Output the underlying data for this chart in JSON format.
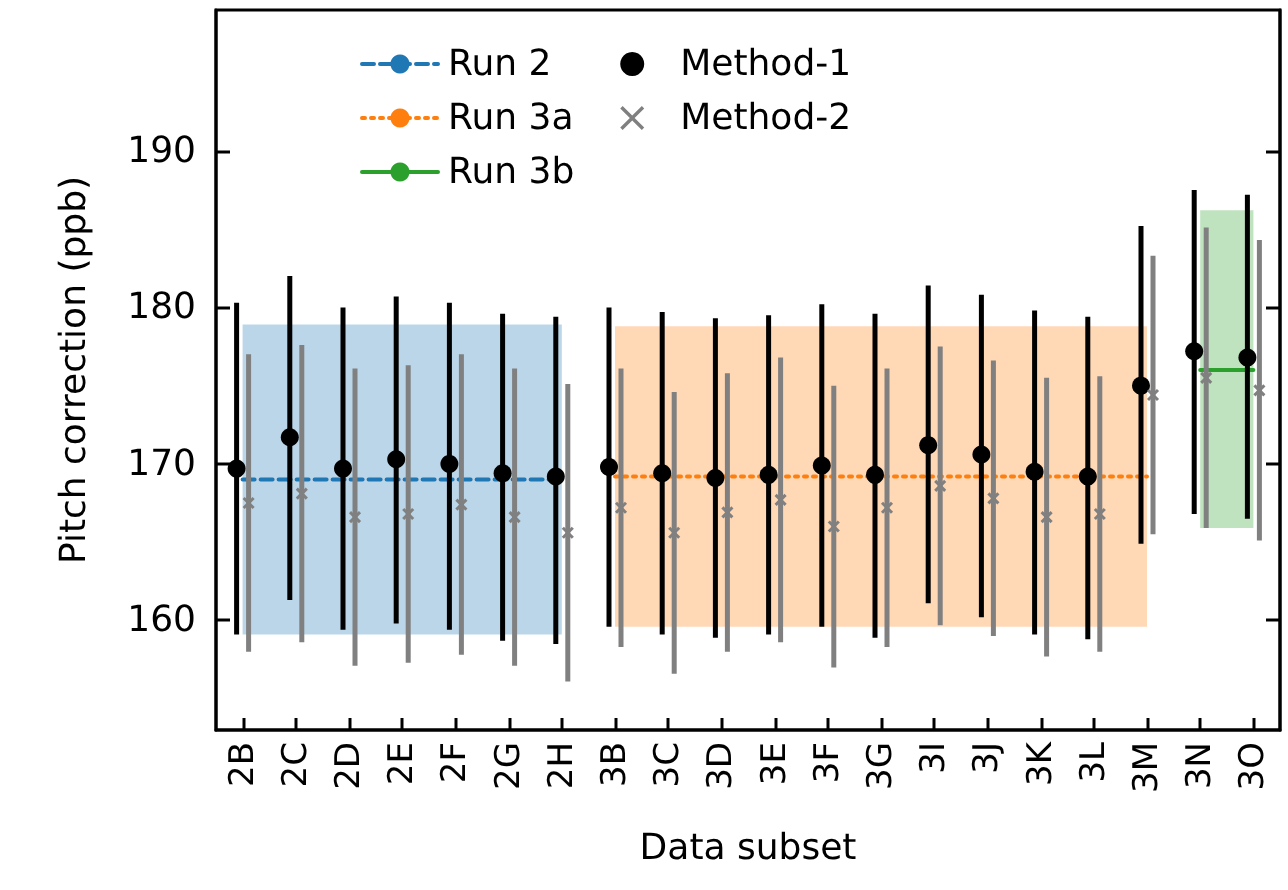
{
  "chart_data": {
    "type": "scatter",
    "xlabel": "Data subset",
    "ylabel": "Pitch correction (ppb)",
    "categories": [
      "2B",
      "2C",
      "2D",
      "2E",
      "2F",
      "2G",
      "2H",
      "3B",
      "3C",
      "3D",
      "3E",
      "3F",
      "3G",
      "3I",
      "3J",
      "3K",
      "3L",
      "3M",
      "3N",
      "3O"
    ],
    "ylim": [
      153,
      199
    ],
    "yticks": [
      160,
      170,
      180,
      190
    ],
    "grid": false,
    "legend": "top",
    "series": [
      {
        "name": "Run 2",
        "type": "line",
        "line_style": "dashed",
        "marker": "none",
        "color": "#1f77b4",
        "x": [
          "2B",
          "2C",
          "2D",
          "2E",
          "2F",
          "2G",
          "2H"
        ],
        "values": [
          169.0,
          169.0,
          169.0,
          169.0,
          169.0,
          169.0,
          169.0
        ],
        "lower": [
          159.1,
          159.1,
          159.1,
          159.1,
          159.1,
          159.1,
          159.1
        ],
        "upper": [
          178.9,
          178.9,
          178.9,
          178.9,
          178.9,
          178.9,
          178.9
        ]
      },
      {
        "name": "Run 3a",
        "type": "line",
        "line_style": "dotted",
        "marker": "none",
        "color": "#ff7f0e",
        "x": [
          "3B",
          "3C",
          "3D",
          "3E",
          "3F",
          "3G",
          "3I",
          "3J",
          "3K",
          "3L",
          "3M"
        ],
        "values": [
          169.2,
          169.2,
          169.2,
          169.2,
          169.2,
          169.2,
          169.2,
          169.2,
          169.2,
          169.2,
          169.2
        ],
        "lower": [
          159.6,
          159.6,
          159.6,
          159.6,
          159.6,
          159.6,
          159.6,
          159.6,
          159.6,
          159.6,
          159.6
        ],
        "upper": [
          178.8,
          178.8,
          178.8,
          178.8,
          178.8,
          178.8,
          178.8,
          178.8,
          178.8,
          178.8,
          178.8
        ]
      },
      {
        "name": "Run 3b",
        "type": "line",
        "line_style": "solid",
        "marker": "none",
        "color": "#2ca02c",
        "x": [
          "3N",
          "3O"
        ],
        "values": [
          176.0,
          176.0
        ],
        "lower": [
          165.9,
          165.9
        ],
        "upper": [
          186.2,
          186.2
        ]
      },
      {
        "name": "Method-1",
        "marker": "circle",
        "color": "#000000",
        "values": [
          169.7,
          171.7,
          169.7,
          170.3,
          170.0,
          169.4,
          169.2,
          169.8,
          169.4,
          169.1,
          169.3,
          169.9,
          169.3,
          171.2,
          170.6,
          169.5,
          169.2,
          175.0,
          177.2,
          176.8
        ],
        "errors": [
          [
            159.1,
            180.3
          ],
          [
            161.3,
            182.0
          ],
          [
            159.4,
            180.0
          ],
          [
            159.8,
            180.7
          ],
          [
            159.4,
            180.3
          ],
          [
            158.7,
            179.6
          ],
          [
            158.5,
            179.4
          ],
          [
            159.6,
            180.0
          ],
          [
            159.1,
            179.7
          ],
          [
            158.9,
            179.3
          ],
          [
            159.1,
            179.5
          ],
          [
            159.6,
            180.2
          ],
          [
            158.9,
            179.6
          ],
          [
            161.1,
            181.4
          ],
          [
            160.2,
            180.8
          ],
          [
            159.1,
            179.8
          ],
          [
            158.8,
            179.4
          ],
          [
            164.9,
            185.2
          ],
          [
            166.8,
            187.5
          ],
          [
            166.5,
            187.2
          ]
        ]
      },
      {
        "name": "Method-2",
        "marker": "cross",
        "color": "#808080",
        "values": [
          167.5,
          168.1,
          166.6,
          166.8,
          167.4,
          166.6,
          165.6,
          167.2,
          165.6,
          166.9,
          167.7,
          166.0,
          167.2,
          168.6,
          167.8,
          166.6,
          166.8,
          174.4,
          175.5,
          174.7
        ],
        "errors": [
          9.5,
          9.5,
          9.5,
          9.5,
          9.6,
          9.5,
          9.5,
          8.9,
          9.0,
          8.9,
          9.1,
          9.0,
          8.9,
          8.9,
          8.8,
          8.9,
          8.8,
          8.9,
          9.6,
          9.6
        ]
      }
    ]
  }
}
